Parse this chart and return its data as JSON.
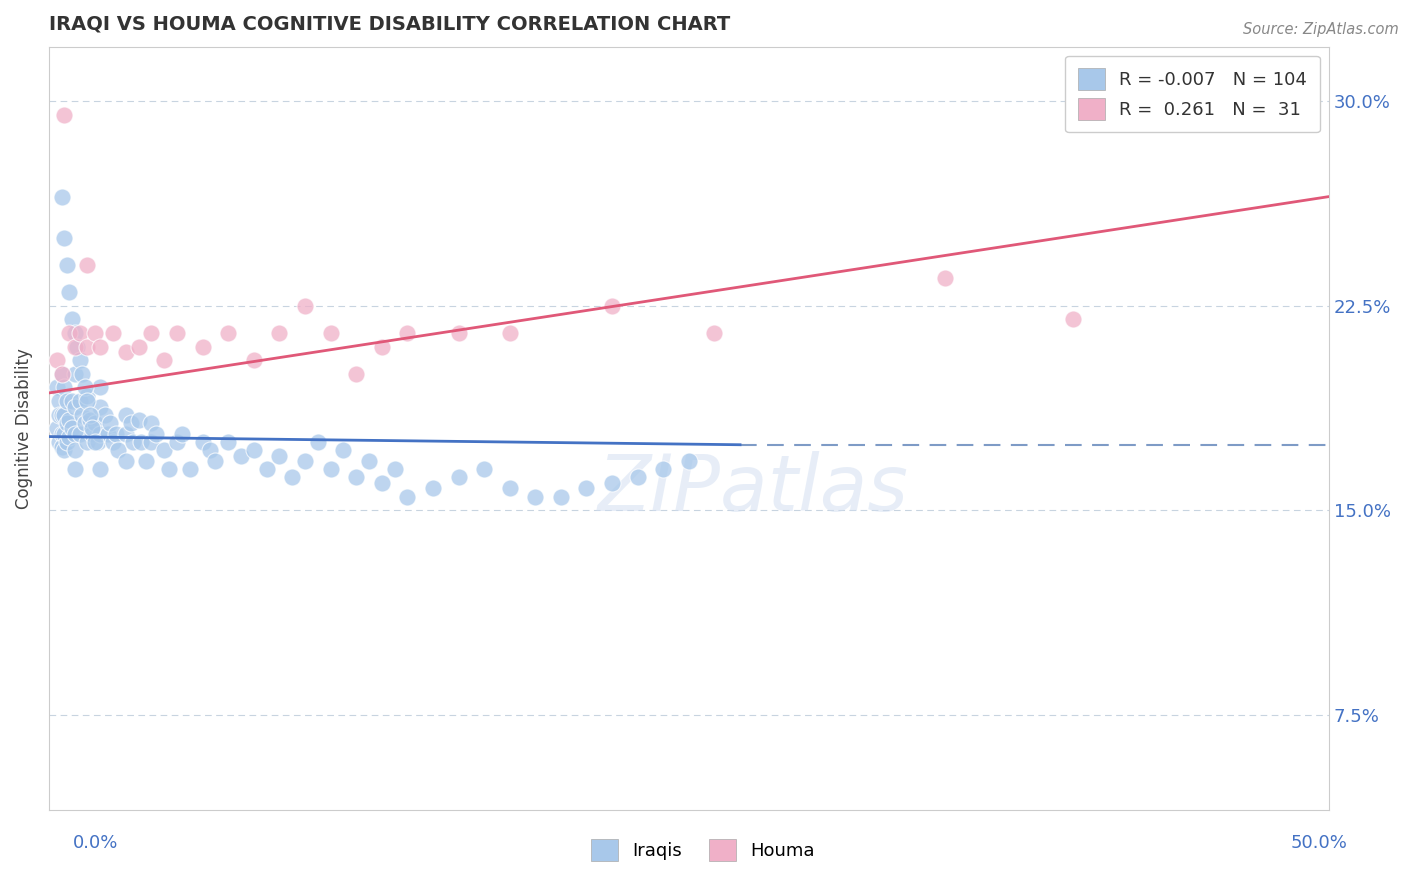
{
  "title": "IRAQI VS HOUMA COGNITIVE DISABILITY CORRELATION CHART",
  "source": "Source: ZipAtlas.com",
  "ylabel": "Cognitive Disability",
  "y_ticks": [
    0.075,
    0.15,
    0.225,
    0.3
  ],
  "y_tick_labels": [
    "7.5%",
    "15.0%",
    "22.5%",
    "30.0%"
  ],
  "xlim": [
    0.0,
    0.5
  ],
  "ylim": [
    0.04,
    0.32
  ],
  "iraqis_color": "#a8c8ea",
  "houma_color": "#f0b0c8",
  "iraqis_line_color": "#4472c4",
  "houma_line_color": "#e05878",
  "dashed_line_color": "#7090c0",
  "grid_color": "#c8d4e0",
  "R_iraqi": -0.007,
  "N_iraqi": 104,
  "R_houma": 0.261,
  "N_houma": 31,
  "watermark": "ZIPatlas",
  "iraqi_line_x_end": 0.27,
  "iraqi_line_y_start": 0.177,
  "iraqi_line_y_end": 0.174,
  "dashed_line_y": 0.174,
  "houma_line_x_start": 0.0,
  "houma_line_x_end": 0.5,
  "houma_line_y_start": 0.193,
  "houma_line_y_end": 0.265,
  "iraqi_pts_x": [
    0.003,
    0.003,
    0.004,
    0.004,
    0.004,
    0.005,
    0.005,
    0.005,
    0.005,
    0.006,
    0.006,
    0.006,
    0.006,
    0.007,
    0.007,
    0.007,
    0.008,
    0.008,
    0.009,
    0.009,
    0.01,
    0.01,
    0.01,
    0.01,
    0.01,
    0.012,
    0.012,
    0.013,
    0.014,
    0.015,
    0.015,
    0.016,
    0.017,
    0.018,
    0.019,
    0.02,
    0.02,
    0.02,
    0.02,
    0.022,
    0.023,
    0.024,
    0.025,
    0.026,
    0.027,
    0.03,
    0.03,
    0.03,
    0.032,
    0.033,
    0.035,
    0.036,
    0.038,
    0.04,
    0.04,
    0.042,
    0.045,
    0.047,
    0.05,
    0.052,
    0.055,
    0.06,
    0.063,
    0.065,
    0.07,
    0.075,
    0.08,
    0.085,
    0.09,
    0.095,
    0.1,
    0.105,
    0.11,
    0.115,
    0.12,
    0.125,
    0.13,
    0.135,
    0.14,
    0.15,
    0.16,
    0.17,
    0.18,
    0.19,
    0.2,
    0.21,
    0.22,
    0.23,
    0.24,
    0.25,
    0.005,
    0.006,
    0.007,
    0.008,
    0.009,
    0.01,
    0.011,
    0.012,
    0.013,
    0.014,
    0.015,
    0.016,
    0.017,
    0.018
  ],
  "iraqi_pts_y": [
    0.195,
    0.18,
    0.19,
    0.185,
    0.175,
    0.2,
    0.185,
    0.178,
    0.173,
    0.195,
    0.185,
    0.178,
    0.172,
    0.19,
    0.182,
    0.175,
    0.183,
    0.177,
    0.19,
    0.18,
    0.2,
    0.188,
    0.178,
    0.172,
    0.165,
    0.19,
    0.178,
    0.185,
    0.182,
    0.192,
    0.175,
    0.183,
    0.178,
    0.182,
    0.175,
    0.188,
    0.195,
    0.178,
    0.165,
    0.185,
    0.178,
    0.182,
    0.175,
    0.178,
    0.172,
    0.185,
    0.178,
    0.168,
    0.182,
    0.175,
    0.183,
    0.175,
    0.168,
    0.182,
    0.175,
    0.178,
    0.172,
    0.165,
    0.175,
    0.178,
    0.165,
    0.175,
    0.172,
    0.168,
    0.175,
    0.17,
    0.172,
    0.165,
    0.17,
    0.162,
    0.168,
    0.175,
    0.165,
    0.172,
    0.162,
    0.168,
    0.16,
    0.165,
    0.155,
    0.158,
    0.162,
    0.165,
    0.158,
    0.155,
    0.155,
    0.158,
    0.16,
    0.162,
    0.165,
    0.168,
    0.265,
    0.25,
    0.24,
    0.23,
    0.22,
    0.215,
    0.21,
    0.205,
    0.2,
    0.195,
    0.19,
    0.185,
    0.18,
    0.175
  ],
  "houma_pts_x": [
    0.003,
    0.005,
    0.008,
    0.01,
    0.012,
    0.015,
    0.018,
    0.02,
    0.025,
    0.03,
    0.035,
    0.04,
    0.045,
    0.05,
    0.06,
    0.07,
    0.08,
    0.09,
    0.1,
    0.11,
    0.12,
    0.13,
    0.14,
    0.16,
    0.18,
    0.22,
    0.26,
    0.35,
    0.4,
    0.006,
    0.015
  ],
  "houma_pts_y": [
    0.205,
    0.2,
    0.215,
    0.21,
    0.215,
    0.21,
    0.215,
    0.21,
    0.215,
    0.208,
    0.21,
    0.215,
    0.205,
    0.215,
    0.21,
    0.215,
    0.205,
    0.215,
    0.225,
    0.215,
    0.2,
    0.21,
    0.215,
    0.215,
    0.215,
    0.225,
    0.215,
    0.235,
    0.22,
    0.295,
    0.24
  ]
}
